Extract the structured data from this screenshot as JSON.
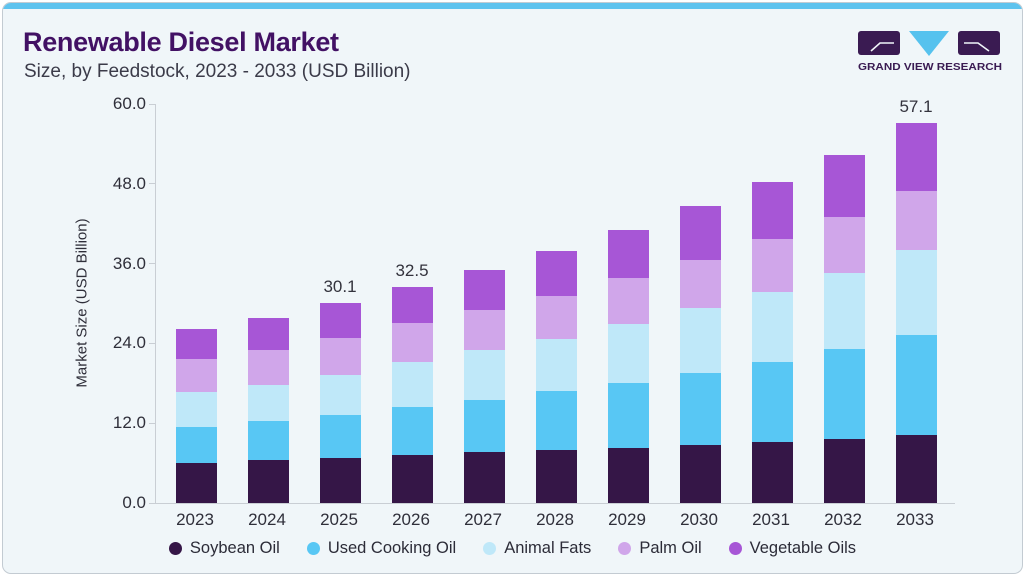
{
  "header": {
    "title": "Renewable Diesel Market",
    "subtitle": "Size, by Feedstock, 2023 - 2033 (USD Billion)"
  },
  "logo": {
    "text": "GRAND VIEW RESEARCH",
    "purple": "#3a1b52",
    "blue": "#56c2ee"
  },
  "chart_data": {
    "type": "bar",
    "stacked": true,
    "title": "Renewable Diesel Market Size, by Feedstock, 2023 - 2033 (USD Billion)",
    "categories": [
      "2023",
      "2024",
      "2025",
      "2026",
      "2027",
      "2028",
      "2029",
      "2030",
      "2031",
      "2032",
      "2033"
    ],
    "series": [
      {
        "name": "Soybean Oil",
        "color": "#351647",
        "values": [
          6.0,
          6.4,
          6.8,
          7.2,
          7.6,
          7.9,
          8.2,
          8.7,
          9.2,
          9.7,
          10.3
        ]
      },
      {
        "name": "Used Cooking Oil",
        "color": "#58c7f4",
        "values": [
          5.5,
          5.9,
          6.4,
          7.3,
          7.9,
          8.9,
          9.9,
          10.9,
          12.0,
          13.4,
          15.0
        ]
      },
      {
        "name": "Animal Fats",
        "color": "#bfe8f9",
        "values": [
          5.2,
          5.4,
          6.1,
          6.7,
          7.5,
          7.8,
          8.8,
          9.7,
          10.6,
          11.5,
          12.7
        ]
      },
      {
        "name": "Palm Oil",
        "color": "#d0a6ea",
        "values": [
          4.9,
          5.3,
          5.5,
          5.9,
          6.1,
          6.6,
          6.9,
          7.3,
          7.9,
          8.4,
          8.9
        ]
      },
      {
        "name": "Vegetable Oils",
        "color": "#a756d6",
        "values": [
          4.5,
          4.9,
          5.3,
          5.4,
          6.0,
          6.7,
          7.2,
          8.0,
          8.6,
          9.4,
          10.2
        ]
      }
    ],
    "bar_total_labels": [
      "",
      "",
      "30.1",
      "32.5",
      "",
      "",
      "",
      "",
      "",
      "",
      "57.1"
    ],
    "xlabel": "",
    "ylabel": "Market Size (USD Billion)",
    "ylim": [
      0,
      60
    ],
    "yticks": [
      "0.0",
      "12.0",
      "24.0",
      "36.0",
      "48.0",
      "60.0"
    ],
    "grid": false,
    "legend_position": "bottom"
  }
}
